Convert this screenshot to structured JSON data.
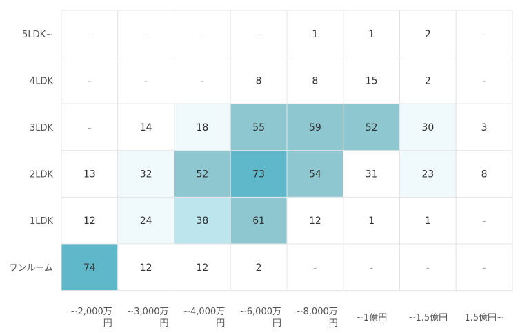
{
  "chart_data": {
    "type": "heatmap",
    "rows": [
      "5LDK~",
      "4LDK",
      "3LDK",
      "2LDK",
      "1LDK",
      "ワンルーム"
    ],
    "columns": [
      [
        "~2,000万",
        "円"
      ],
      [
        "~3,000万",
        "円"
      ],
      [
        "~4,000万",
        "円"
      ],
      [
        "~6,000万",
        "円"
      ],
      [
        "~8,000万",
        "円"
      ],
      [
        "~1億円"
      ],
      [
        "~1.5億円"
      ],
      [
        "1.5億円~"
      ]
    ],
    "values": [
      [
        null,
        null,
        null,
        null,
        1,
        1,
        2,
        null
      ],
      [
        null,
        null,
        null,
        8,
        8,
        15,
        2,
        null
      ],
      [
        null,
        14,
        18,
        55,
        59,
        52,
        30,
        3
      ],
      [
        13,
        32,
        52,
        73,
        54,
        31,
        23,
        8
      ],
      [
        12,
        24,
        38,
        61,
        12,
        1,
        1,
        null
      ],
      [
        74,
        12,
        12,
        2,
        null,
        null,
        null,
        null
      ]
    ],
    "fill_levels": [
      [
        0,
        0,
        0,
        0,
        0,
        0,
        0,
        0
      ],
      [
        0,
        0,
        0,
        0,
        0,
        0,
        0,
        0
      ],
      [
        0,
        0,
        1,
        3,
        3,
        3,
        1,
        0
      ],
      [
        0,
        1,
        3,
        4,
        3,
        0,
        1,
        0
      ],
      [
        0,
        1,
        2,
        3,
        0,
        0,
        0,
        0
      ],
      [
        4,
        0,
        0,
        0,
        0,
        0,
        0,
        0
      ]
    ],
    "empty_marker": "-",
    "colors": {
      "level0": "#ffffff",
      "level1": "#f0f9fc",
      "level2": "#bde5ed",
      "level3": "#8fc7d1",
      "level4": "#5fb8c9",
      "grid": "#e5e5e5"
    }
  }
}
